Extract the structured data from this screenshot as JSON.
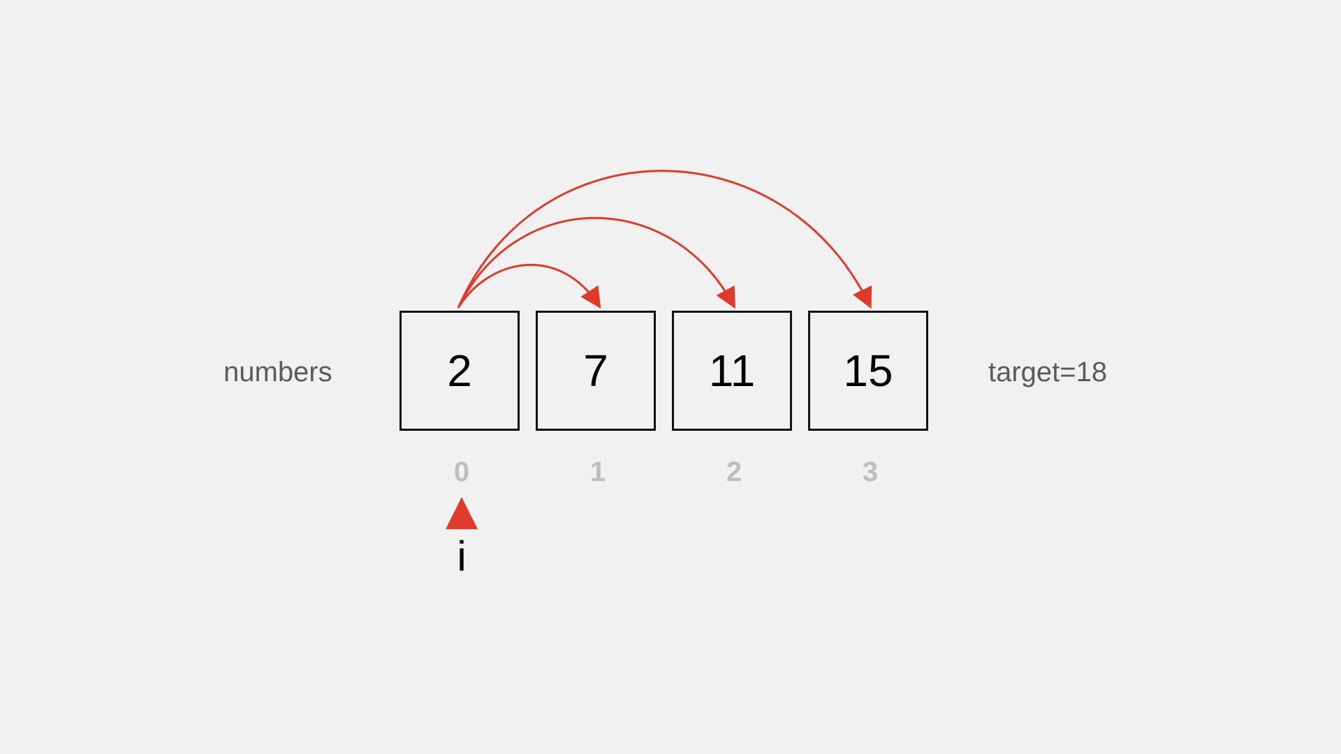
{
  "array_label": "numbers",
  "target_label": "target=18",
  "cells": [
    {
      "value": "2",
      "index": "0"
    },
    {
      "value": "7",
      "index": "1"
    },
    {
      "value": "11",
      "index": "2"
    },
    {
      "value": "15",
      "index": "3"
    }
  ],
  "pointer": {
    "label": "i",
    "at_index": 0
  },
  "arrows": {
    "from_index": 0,
    "to_indices": [
      1,
      2,
      3
    ],
    "color": "#e03a2a"
  }
}
